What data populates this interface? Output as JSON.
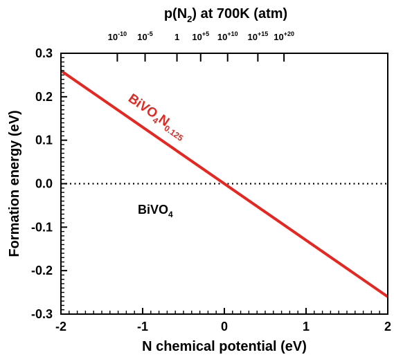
{
  "chart_data": {
    "type": "line",
    "top_axis_title_parts": [
      "p(N",
      "2",
      ") at 700K (atm)"
    ],
    "xlabel": "N chemical potential (eV)",
    "ylabel": "Formation energy (eV)",
    "xlim": [
      -2,
      2
    ],
    "ylim": [
      -0.3,
      0.3
    ],
    "x_ticks": [
      {
        "value": -2,
        "label": "-2"
      },
      {
        "value": -1,
        "label": "-1"
      },
      {
        "value": 0,
        "label": "0"
      },
      {
        "value": 1,
        "label": "1"
      },
      {
        "value": 2,
        "label": "2"
      }
    ],
    "y_ticks": [
      {
        "value": 0.3,
        "label": "0.3"
      },
      {
        "value": 0.2,
        "label": "0.2"
      },
      {
        "value": 0.1,
        "label": "0.1"
      },
      {
        "value": 0.0,
        "label": "0.0"
      },
      {
        "value": -0.1,
        "label": "-0.1"
      },
      {
        "value": -0.2,
        "label": "-0.2"
      },
      {
        "value": -0.3,
        "label": "-0.3"
      }
    ],
    "top_ticks": [
      {
        "x": -1.31,
        "base": "10",
        "exp": "-10"
      },
      {
        "x": -0.97,
        "base": "10",
        "exp": "-5"
      },
      {
        "x": -0.58,
        "base": "1",
        "exp": ""
      },
      {
        "x": -0.29,
        "base": "10",
        "exp": "+5"
      },
      {
        "x": 0.04,
        "base": "10",
        "exp": "+10"
      },
      {
        "x": 0.41,
        "base": "10",
        "exp": "+15"
      },
      {
        "x": 0.73,
        "base": "10",
        "exp": "+20"
      }
    ],
    "series": [
      {
        "name_parts": [
          "BiVO",
          "4",
          "N",
          "0.125"
        ],
        "color": "#e8251e",
        "x": [
          -2,
          2
        ],
        "y": [
          0.26,
          -0.26
        ]
      }
    ],
    "reference_line": {
      "y": 0.0,
      "style": "dotted",
      "label_parts": [
        "BiVO",
        "4"
      ]
    }
  }
}
